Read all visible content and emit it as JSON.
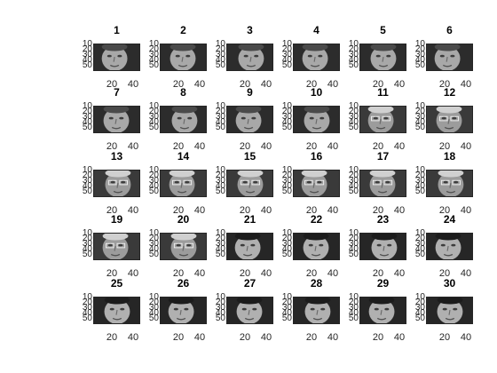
{
  "figure": {
    "background": "#ffffff",
    "colormap": "gray",
    "image_axes": {
      "xticks": [
        "20",
        "40"
      ],
      "yticks": [
        "10",
        "20",
        "30",
        "40",
        "50"
      ]
    },
    "panels": [
      {
        "title": "1"
      },
      {
        "title": "2"
      },
      {
        "title": "3"
      },
      {
        "title": "4"
      },
      {
        "title": "5"
      },
      {
        "title": "6"
      },
      {
        "title": "7"
      },
      {
        "title": "8"
      },
      {
        "title": "9"
      },
      {
        "title": "10"
      },
      {
        "title": "11"
      },
      {
        "title": "12"
      },
      {
        "title": "13"
      },
      {
        "title": "14"
      },
      {
        "title": "15"
      },
      {
        "title": "16"
      },
      {
        "title": "17"
      },
      {
        "title": "18"
      },
      {
        "title": "19"
      },
      {
        "title": "20"
      },
      {
        "title": "21"
      },
      {
        "title": "22"
      },
      {
        "title": "23"
      },
      {
        "title": "24"
      },
      {
        "title": "25"
      },
      {
        "title": "26"
      },
      {
        "title": "27"
      },
      {
        "title": "28"
      },
      {
        "title": "29"
      },
      {
        "title": "30"
      }
    ]
  }
}
